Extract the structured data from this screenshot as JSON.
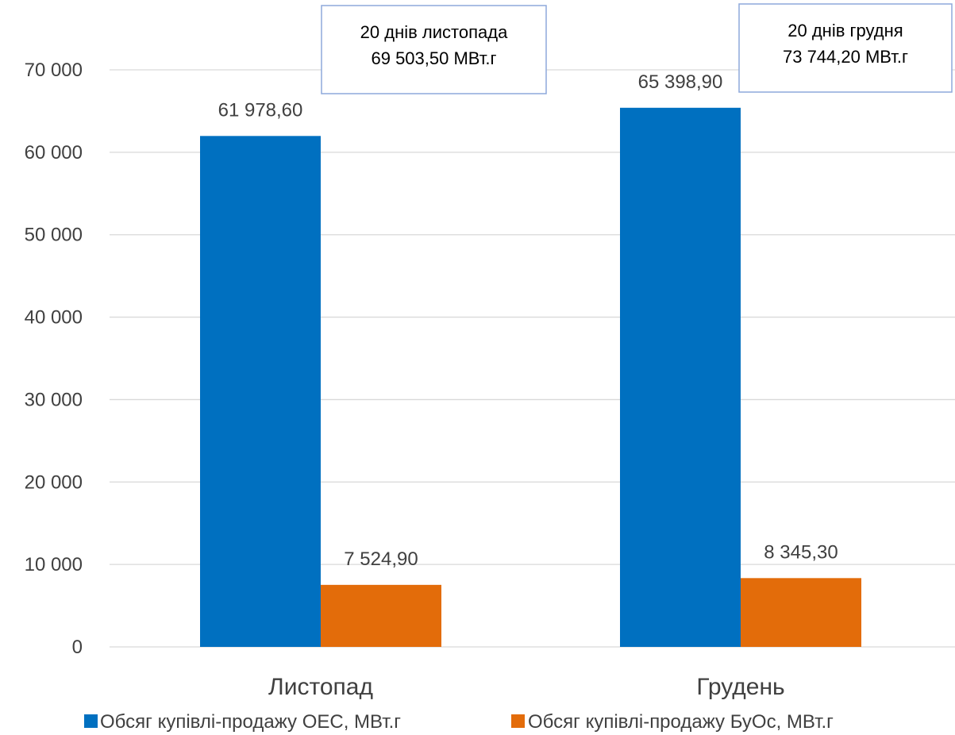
{
  "chart_data": {
    "type": "bar",
    "categories": [
      "Листопад",
      "Грудень"
    ],
    "series": [
      {
        "name": "Обсяг купівлі-продажу ОЕС, МВт.г",
        "values": [
          61978.6,
          65398.9
        ],
        "labels": [
          "61 978,60",
          "65 398,90"
        ],
        "color": "#0070C0"
      },
      {
        "name": "Обсяг купівлі-продажу БуОс, МВт.г",
        "values": [
          7524.9,
          8345.3
        ],
        "labels": [
          "7 524,90",
          "8 345,30"
        ],
        "color": "#E36C0A"
      }
    ],
    "ylim": [
      0,
      70000
    ],
    "yticks": [
      0,
      10000,
      20000,
      30000,
      40000,
      50000,
      60000,
      70000
    ],
    "ytick_labels": [
      "0",
      "10 000",
      "20 000",
      "30 000",
      "40 000",
      "50 000",
      "60 000",
      "70 000"
    ],
    "grid": true,
    "legend_position": "bottom",
    "annotations": [
      {
        "category": "Листопад",
        "line1": "20 днів листопада",
        "line2": "69 503,50 МВт.г"
      },
      {
        "category": "Грудень",
        "line1": "20 днів грудня",
        "line2": "73 744,20 МВт.г"
      }
    ],
    "gridline_color": "#D9D9D9",
    "annotation_border_color": "#8EA9DB"
  }
}
